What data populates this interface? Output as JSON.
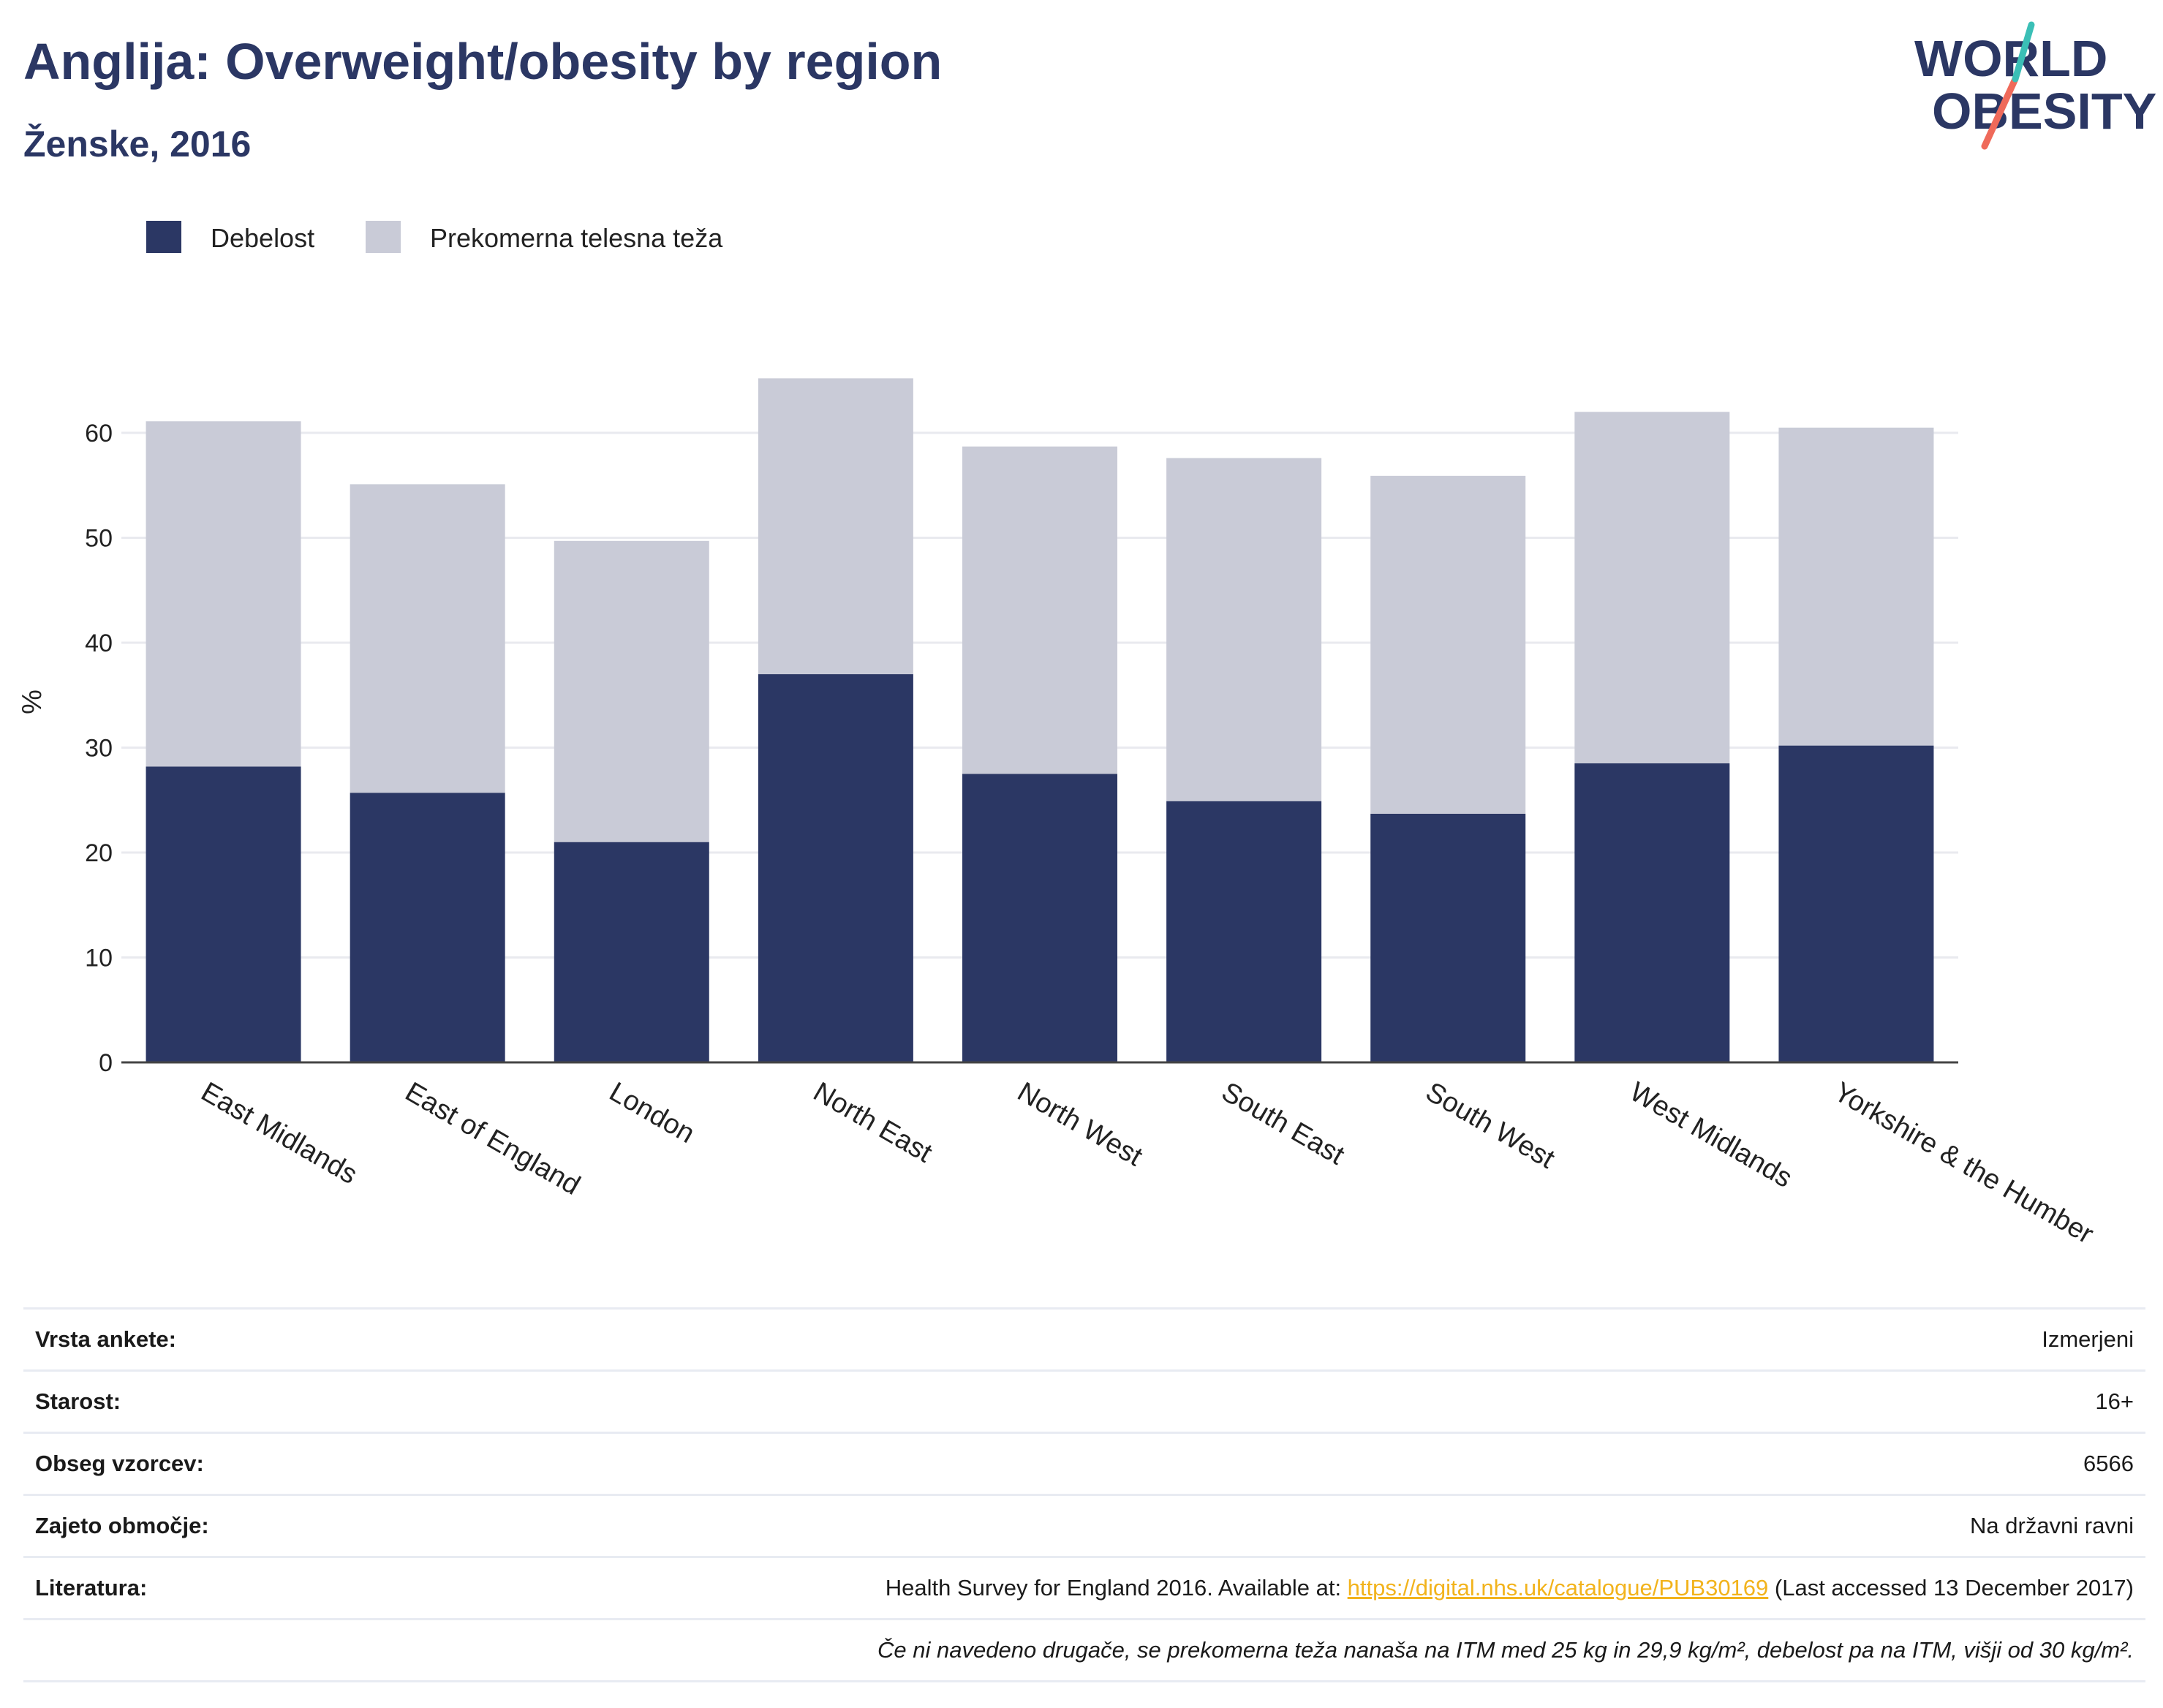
{
  "header": {
    "title": "Anglija: Overweight/obesity by region",
    "subtitle": "Ženske, 2016"
  },
  "logo": {
    "line1": "WORLD",
    "line2": "OBESITY",
    "accent_teal": "#3bbfb6",
    "accent_coral": "#ef6a5a",
    "text_color": "#2b3764"
  },
  "colors": {
    "obesity": "#2b3764",
    "overweight": "#c9cbd7",
    "grid": "#e9eaef",
    "axis": "#444444"
  },
  "chart_data": {
    "type": "bar",
    "stacked": true,
    "categories": [
      "East Midlands",
      "East of England",
      "London",
      "North East",
      "North West",
      "South East",
      "South West",
      "West Midlands",
      "Yorkshire & the Humber"
    ],
    "series": [
      {
        "name": "Debelost",
        "values": [
          28.2,
          25.7,
          21.0,
          37.0,
          27.5,
          24.9,
          23.7,
          28.5,
          30.2
        ]
      },
      {
        "name": "Prekomerna telesna teža",
        "values": [
          32.9,
          29.4,
          28.7,
          28.2,
          31.2,
          32.7,
          32.2,
          33.5,
          30.3
        ]
      }
    ],
    "ylabel": "%",
    "ylim": [
      0,
      70
    ],
    "yticks": [
      0,
      10,
      20,
      30,
      40,
      50,
      60
    ],
    "grid": true,
    "legend_position": "top-left"
  },
  "info": {
    "rows": [
      {
        "label": "Vrsta ankete:",
        "value": "Izmerjeni"
      },
      {
        "label": "Starost:",
        "value": "16+"
      },
      {
        "label": "Obseg vzorcev:",
        "value": "6566"
      },
      {
        "label": "Zajeto območje:",
        "value": "Na državni ravni"
      }
    ],
    "reference": {
      "label": "Literatura:",
      "prefix": "Health Survey for England 2016. Available at: ",
      "link": "https://digital.nhs.uk/catalogue/PUB30169",
      "suffix": " (Last accessed 13 December 2017)"
    },
    "footnote": "Če ni navedeno drugače, se prekomerna teža nanaša na ITM med 25 kg in 29,9 kg/m², debelost pa na ITM, višji od 30 kg/m²."
  }
}
